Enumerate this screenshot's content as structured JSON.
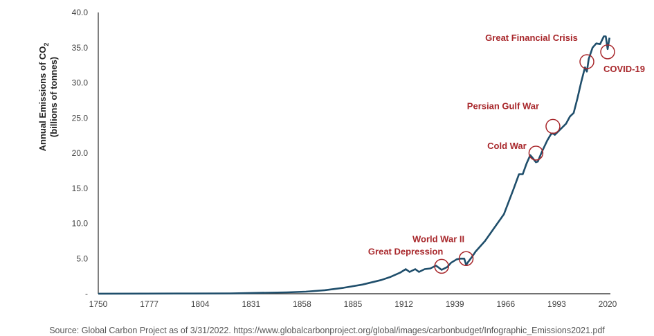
{
  "chart_data": {
    "type": "line",
    "title": "",
    "ylabel_line1": "Annual Emissions of CO",
    "ylabel_sub": "2",
    "ylabel_line2": "(billions of tonnes)",
    "xlabel": "",
    "xlim": [
      1750,
      2020
    ],
    "ylim": [
      0,
      40
    ],
    "grid": false,
    "x_ticks": [
      "1750",
      "1777",
      "1804",
      "1831",
      "1858",
      "1885",
      "1912",
      "1939",
      "1966",
      "1993",
      "2020"
    ],
    "y_ticks": [
      "-",
      "5.0",
      "10.0",
      "15.0",
      "20.0",
      "25.0",
      "30.0",
      "35.0",
      "40.0"
    ],
    "line_color": "#1f4e6b",
    "annotation_color": "#a8272b",
    "series": [
      {
        "name": "Annual CO2 emissions",
        "x": [
          1750,
          1775,
          1800,
          1820,
          1840,
          1850,
          1860,
          1870,
          1880,
          1890,
          1900,
          1905,
          1910,
          1913,
          1915,
          1918,
          1920,
          1923,
          1926,
          1929,
          1930,
          1932,
          1935,
          1937,
          1940,
          1942,
          1944,
          1945,
          1946,
          1948,
          1950,
          1955,
          1960,
          1965,
          1970,
          1973,
          1975,
          1977,
          1979,
          1980,
          1982,
          1983,
          1985,
          1988,
          1990,
          1991,
          1992,
          1995,
          1998,
          2000,
          2002,
          2004,
          2006,
          2008,
          2009,
          2010,
          2012,
          2014,
          2016,
          2018,
          2019,
          2020,
          2021
        ],
        "y": [
          0.01,
          0.02,
          0.03,
          0.05,
          0.15,
          0.2,
          0.3,
          0.5,
          0.85,
          1.3,
          1.95,
          2.4,
          3.0,
          3.5,
          3.1,
          3.5,
          3.1,
          3.5,
          3.6,
          4.0,
          3.8,
          3.4,
          3.8,
          4.4,
          4.9,
          5.0,
          5.0,
          4.1,
          4.5,
          5.2,
          6.0,
          7.5,
          9.4,
          11.3,
          14.8,
          17.0,
          17.0,
          18.5,
          19.7,
          19.4,
          18.7,
          18.8,
          20.1,
          21.8,
          22.7,
          22.8,
          22.6,
          23.4,
          24.2,
          25.2,
          25.7,
          27.8,
          30.1,
          32.2,
          31.6,
          33.4,
          35.0,
          35.6,
          35.5,
          36.6,
          36.6,
          34.8,
          36.4
        ]
      }
    ],
    "annotations": [
      {
        "label": "Great Depression",
        "x": 1932,
        "y": 3.9
      },
      {
        "label": "World War II",
        "x": 1945,
        "y": 5.0
      },
      {
        "label": "Cold War",
        "x": 1982,
        "y": 20.0
      },
      {
        "label": "Persian Gulf War",
        "x": 1991,
        "y": 23.8
      },
      {
        "label": "Great Financial Crisis",
        "x": 2009,
        "y": 33.0
      },
      {
        "label": "COVID-19",
        "x": 2020,
        "y": 34.4
      }
    ]
  },
  "footer": {
    "source": "Source: Global Carbon Project as of 3/31/2022. https://www.globalcarbonproject.org/global/images/carbonbudget/Infographic_Emissions2021.pdf"
  }
}
